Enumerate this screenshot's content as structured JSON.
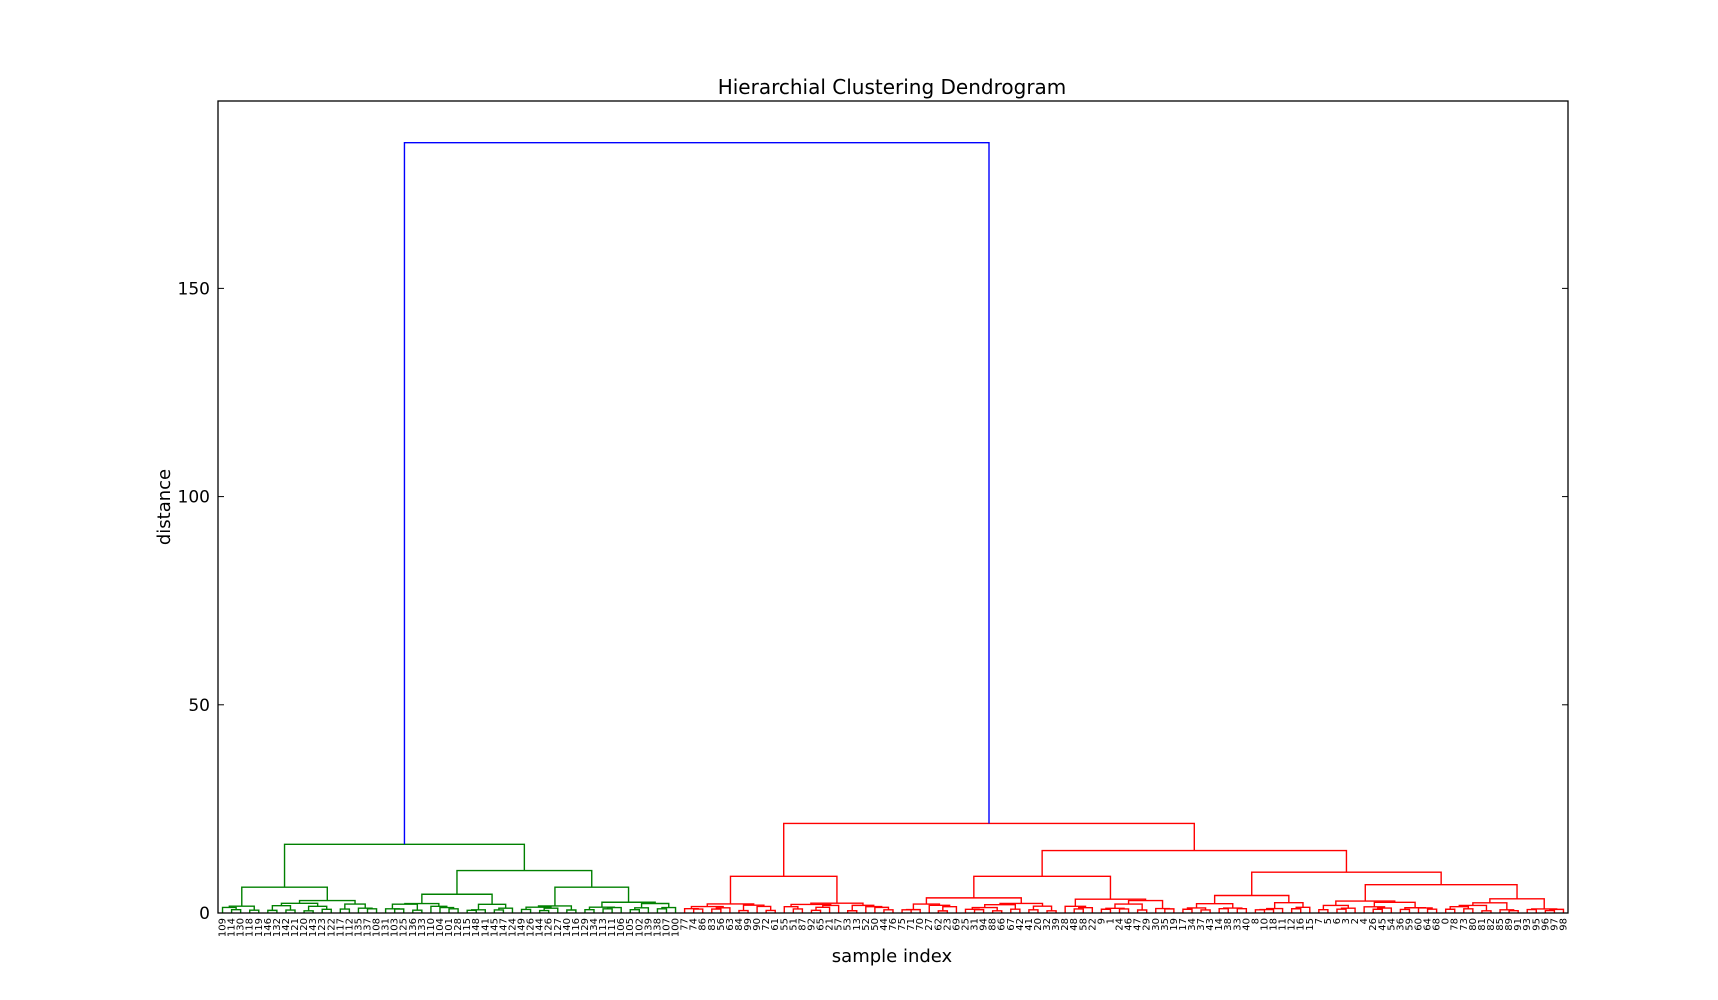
{
  "chart_data": {
    "type": "dendrogram",
    "title": "Hierarchial Clustering Dendrogram",
    "xlabel": "sample index",
    "ylabel": "distance",
    "ylim": [
      0,
      195
    ],
    "yticks": [
      0,
      50,
      100,
      150
    ],
    "colors": {
      "cluster_a": "#008000",
      "cluster_b": "#ff0000",
      "root": "#0000ff"
    },
    "leaves": [
      "109",
      "114",
      "130",
      "118",
      "119",
      "146",
      "132",
      "142",
      "121",
      "120",
      "143",
      "123",
      "122",
      "117",
      "112",
      "135",
      "137",
      "108",
      "131",
      "103",
      "125",
      "136",
      "133",
      "110",
      "104",
      "101",
      "128",
      "115",
      "148",
      "141",
      "145",
      "147",
      "124",
      "149",
      "126",
      "144",
      "126",
      "127",
      "140",
      "116",
      "129",
      "134",
      "113",
      "111",
      "106",
      "105",
      "102",
      "139",
      "138",
      "107",
      "100",
      "77",
      "74",
      "86",
      "83",
      "56",
      "63",
      "84",
      "99",
      "90",
      "72",
      "61",
      "55",
      "51",
      "87",
      "92",
      "65",
      "21",
      "57",
      "53",
      "13",
      "52",
      "50",
      "44",
      "76",
      "75",
      "71",
      "70",
      "27",
      "62",
      "23",
      "69",
      "25",
      "31",
      "94",
      "88",
      "66",
      "67",
      "42",
      "41",
      "20",
      "32",
      "39",
      "28",
      "48",
      "58",
      "22",
      "9",
      "1",
      "24",
      "46",
      "47",
      "29",
      "30",
      "35",
      "19",
      "17",
      "34",
      "37",
      "43",
      "14",
      "38",
      "33",
      "40",
      "8",
      "10",
      "18",
      "11",
      "12",
      "16",
      "15",
      "7",
      "5",
      "6",
      "3",
      "2",
      "4",
      "26",
      "45",
      "54",
      "36",
      "59",
      "60",
      "64",
      "68",
      "0",
      "78",
      "73",
      "80",
      "81",
      "82",
      "85",
      "89",
      "91",
      "93",
      "95",
      "96",
      "97",
      "98"
    ],
    "links": [
      {
        "cluster": "root",
        "height": 185,
        "left_height": 16.5,
        "right_height": 21.5
      },
      {
        "cluster": "cluster_a",
        "height": 16.5,
        "left_height": 6.2,
        "right_height": 10.2
      },
      {
        "cluster": "cluster_a",
        "height": 10.2,
        "left_height": 4.5,
        "right_height": 6.2
      },
      {
        "cluster": "cluster_b",
        "height": 21.5,
        "left_height": 8.8,
        "right_height": 15.0
      },
      {
        "cluster": "cluster_b",
        "height": 15.0,
        "left_height": 8.8,
        "right_height": 9.8
      },
      {
        "cluster": "cluster_b",
        "height": 9.8,
        "left_height": 4.2,
        "right_height": 6.8
      }
    ]
  }
}
